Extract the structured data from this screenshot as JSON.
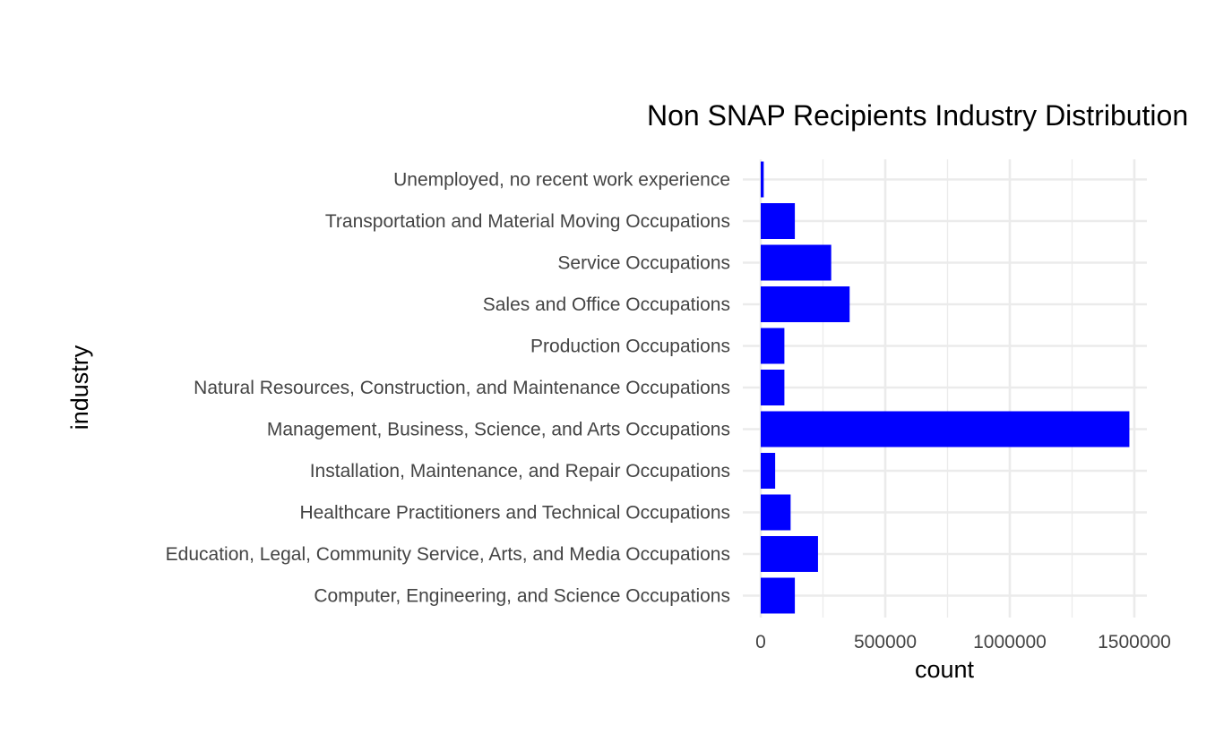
{
  "chart_data": {
    "type": "bar",
    "orientation": "horizontal",
    "title": "Non SNAP Recipients Industry Distribution",
    "xlabel": "count",
    "ylabel": "industry",
    "categories": [
      "Computer, Engineering, and Science Occupations",
      "Education, Legal, Community Service, Arts, and Media Occupations",
      "Healthcare Practitioners and Technical Occupations",
      "Installation, Maintenance, and Repair Occupations",
      "Management, Business, Science, and Arts Occupations",
      "Natural Resources, Construction, and Maintenance Occupations",
      "Production Occupations",
      "Sales and Office Occupations",
      "Service Occupations",
      "Transportation and Material Moving Occupations",
      "Unemployed, no recent work experience"
    ],
    "values": [
      137000,
      230000,
      120000,
      58000,
      1480000,
      95000,
      95000,
      357000,
      283000,
      137000,
      12000
    ],
    "xlim": [
      0,
      1550000
    ],
    "x_ticks": [
      0,
      500000,
      1000000,
      1500000
    ],
    "x_tick_labels": [
      "0",
      "500000",
      "1000000",
      "1500000"
    ],
    "bar_color": "#0000ff",
    "grid": true,
    "legend": "none"
  }
}
